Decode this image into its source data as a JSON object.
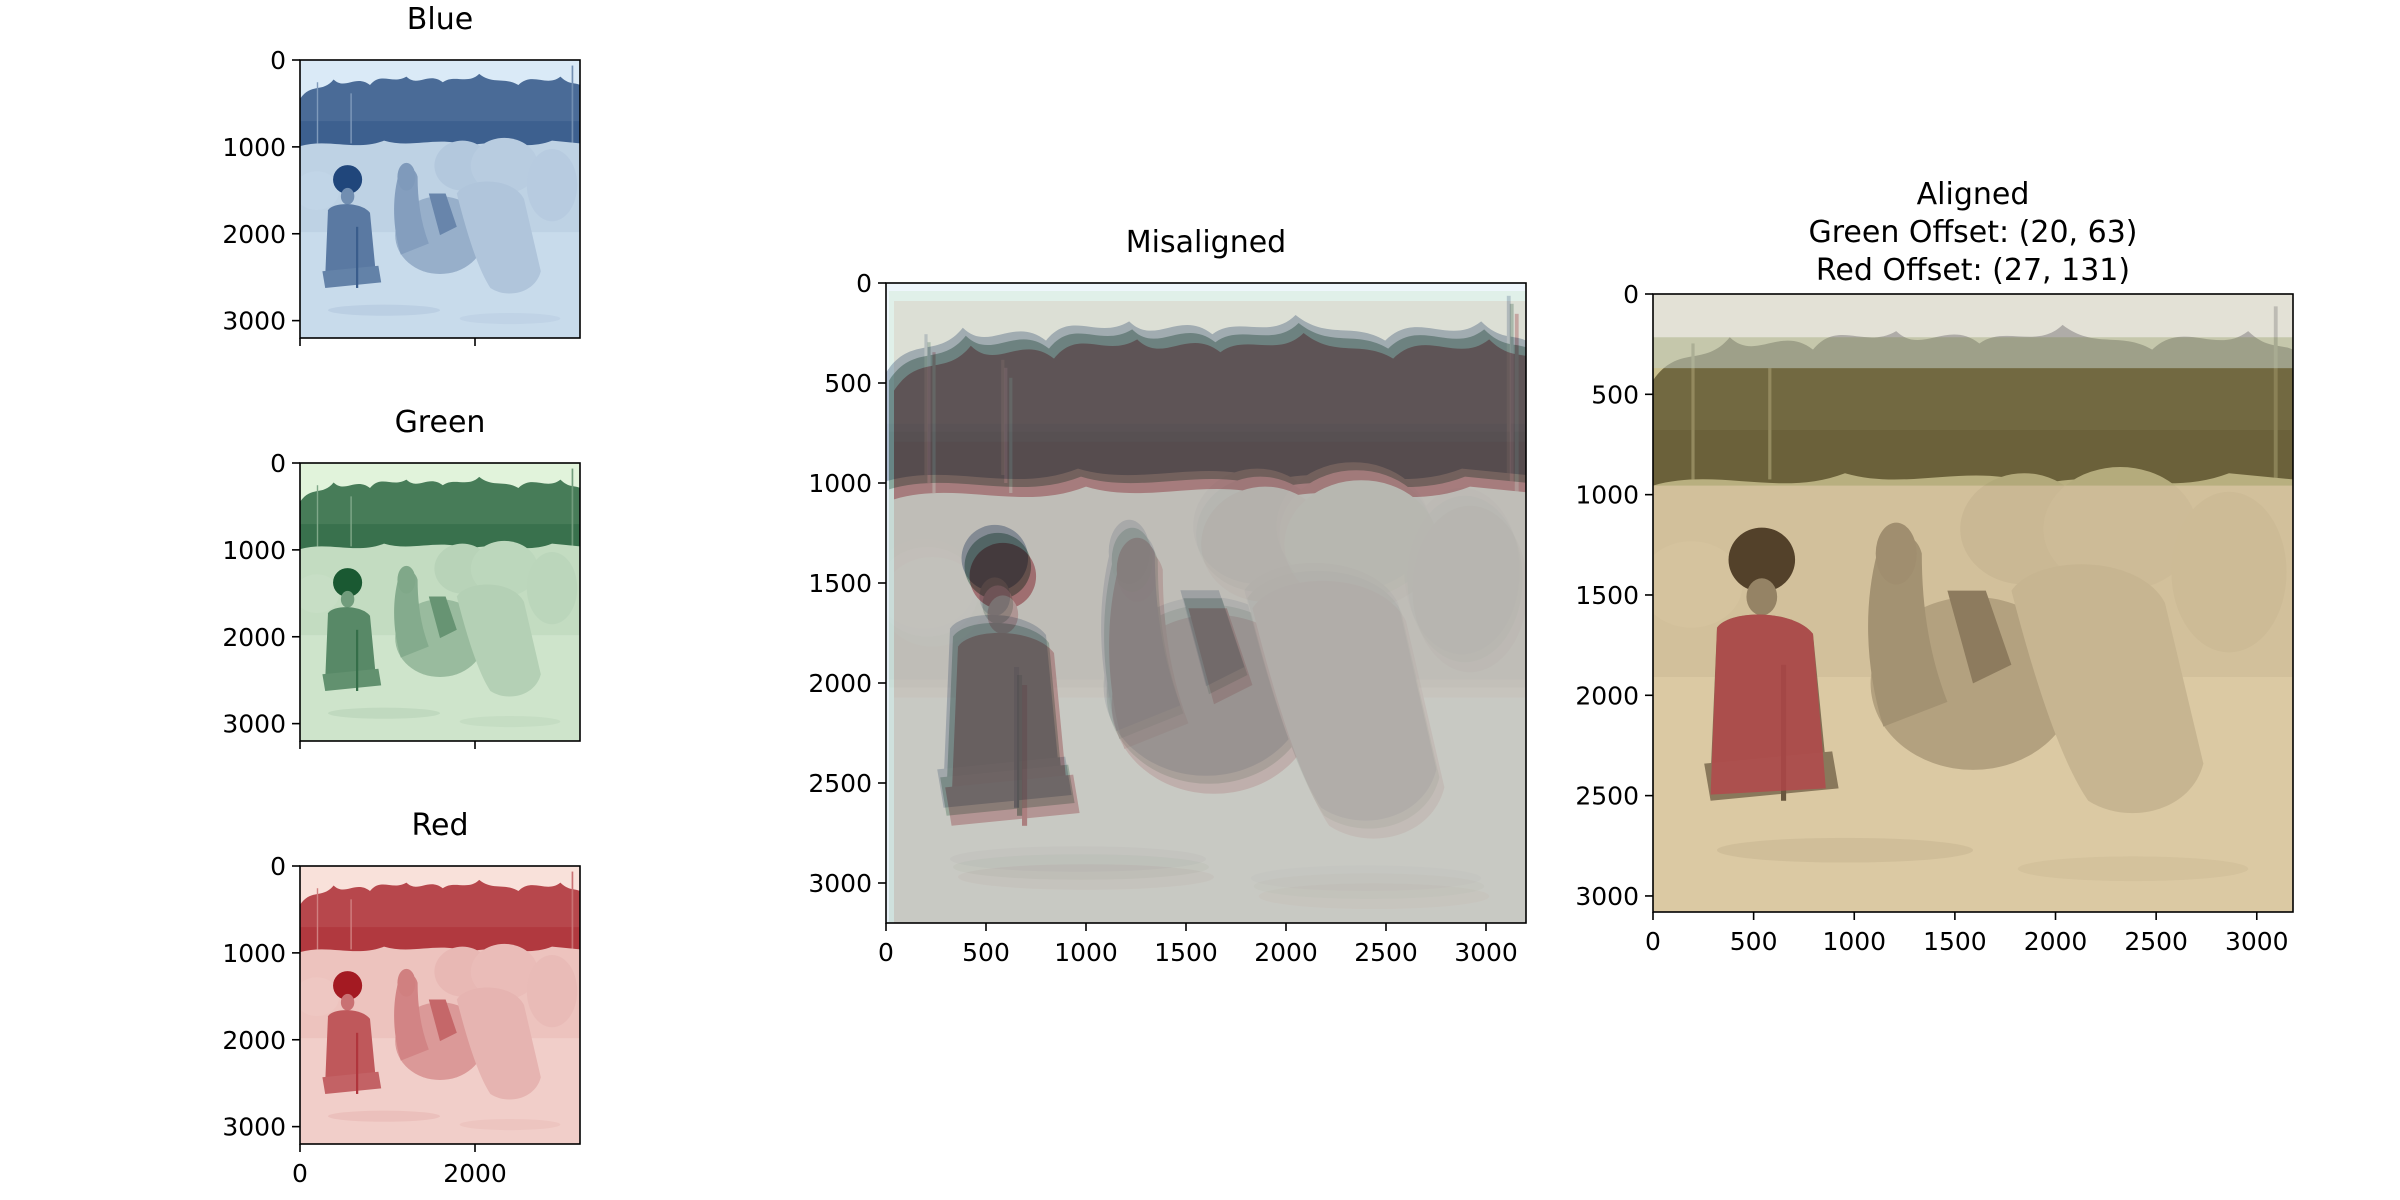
{
  "chart_data": [
    {
      "type": "image",
      "id": "blue",
      "title": "Blue",
      "image_description": "Blue channel plate (blue-tinted monochrome): man in tall fur hat seated beside a resting camel loaded with sacks, trees behind",
      "tint": "#1f64b4",
      "xlim": [
        0,
        3200
      ],
      "ylim": [
        3200,
        0
      ],
      "xticks": [
        0,
        2000
      ],
      "xtick_labels": [
        "",
        ""
      ],
      "yticks": [
        0,
        1000,
        2000,
        3000
      ],
      "ytick_labels": [
        "0",
        "1000",
        "2000",
        "3000"
      ]
    },
    {
      "type": "image",
      "id": "green",
      "title": "Green",
      "image_description": "Green channel plate (green-tinted monochrome) of the same scene",
      "tint": "#2e9e42",
      "xlim": [
        0,
        3200
      ],
      "ylim": [
        3200,
        0
      ],
      "xticks": [
        0,
        2000
      ],
      "xtick_labels": [
        "",
        ""
      ],
      "yticks": [
        0,
        1000,
        2000,
        3000
      ],
      "ytick_labels": [
        "0",
        "1000",
        "2000",
        "3000"
      ]
    },
    {
      "type": "image",
      "id": "red",
      "title": "Red",
      "image_description": "Red channel plate (red-tinted monochrome) of the same scene",
      "tint": "#de3a22",
      "xlim": [
        0,
        3200
      ],
      "ylim": [
        3200,
        0
      ],
      "xticks": [
        0,
        2000
      ],
      "xtick_labels": [
        "0",
        "2000"
      ],
      "yticks": [
        0,
        1000,
        2000,
        3000
      ],
      "ytick_labels": [
        "0",
        "1000",
        "2000",
        "3000"
      ]
    },
    {
      "type": "image",
      "id": "misaligned",
      "title": "Misaligned",
      "image_description": "Stacked RGB channels without alignment: colour fringing and ghosting (magenta, cyan, yellow) around man, camel and trees",
      "xlim": [
        0,
        3200
      ],
      "ylim": [
        3200,
        0
      ],
      "xticks": [
        0,
        500,
        1000,
        1500,
        2000,
        2500,
        3000
      ],
      "xtick_labels": [
        "0",
        "500",
        "1000",
        "1500",
        "2000",
        "2500",
        "3000"
      ],
      "yticks": [
        0,
        500,
        1000,
        1500,
        2000,
        2500,
        3000
      ],
      "ytick_labels": [
        "0",
        "500",
        "1000",
        "1500",
        "2000",
        "2500",
        "3000"
      ]
    },
    {
      "type": "image",
      "id": "aligned",
      "title_lines": [
        "Aligned",
        "Green Offset: (20, 63)",
        "Red Offset: (27, 131)"
      ],
      "image_description": "Aligned colour composite: man in red robe and black fur hat beside camel with large canvas sacks, green trees and pale sky",
      "green_offset": [
        20,
        63
      ],
      "red_offset": [
        27,
        131
      ],
      "xlim": [
        0,
        3180
      ],
      "ylim": [
        3080,
        0
      ],
      "xticks": [
        0,
        500,
        1000,
        1500,
        2000,
        2500,
        3000
      ],
      "xtick_labels": [
        "0",
        "500",
        "1000",
        "1500",
        "2000",
        "2500",
        "3000"
      ],
      "yticks": [
        0,
        500,
        1000,
        1500,
        2000,
        2500,
        3000
      ],
      "ytick_labels": [
        "0",
        "500",
        "1000",
        "1500",
        "2000",
        "2500",
        "3000"
      ]
    }
  ]
}
